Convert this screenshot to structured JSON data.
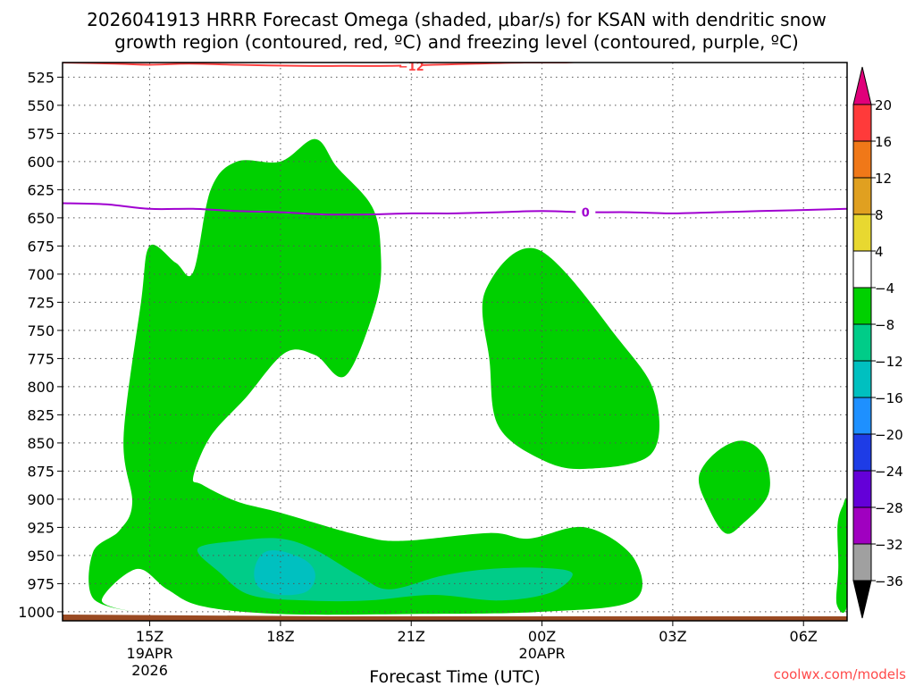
{
  "title": {
    "line1": "2026041913 HRRR Forecast Omega (shaded, μbar/s) for KSAN with dendritic snow",
    "line2": "growth region (contoured, red, ºC) and freezing level (contoured, purple, ºC)"
  },
  "credit": "coolwx.com/models",
  "chart_data": {
    "type": "contour",
    "xlabel": "Forecast Time (UTC)",
    "ylabel": "",
    "x_axis": {
      "unit": "hours since 2026-04-19 13Z",
      "range": [
        0,
        18
      ],
      "ticks": [
        {
          "value": 2,
          "label": "15Z",
          "sub1": "19APR",
          "sub2": "2026"
        },
        {
          "value": 5,
          "label": "18Z",
          "sub1": "",
          "sub2": ""
        },
        {
          "value": 8,
          "label": "21Z",
          "sub1": "",
          "sub2": ""
        },
        {
          "value": 11,
          "label": "00Z",
          "sub1": "20APR",
          "sub2": ""
        },
        {
          "value": 14,
          "label": "03Z",
          "sub1": "",
          "sub2": ""
        },
        {
          "value": 17,
          "label": "06Z",
          "sub1": "",
          "sub2": ""
        }
      ]
    },
    "y_axis": {
      "unit": "mb",
      "range": [
        1008,
        512
      ],
      "ticks": [
        525,
        550,
        575,
        600,
        625,
        650,
        675,
        700,
        725,
        750,
        775,
        800,
        825,
        850,
        875,
        900,
        925,
        950,
        975,
        1000
      ]
    },
    "grid": true,
    "colorbar": {
      "labels": [
        "20",
        "16",
        "12",
        "8",
        "4",
        "−4",
        "−8",
        "−12",
        "−16",
        "−20",
        "−24",
        "−28",
        "−32",
        "−36"
      ],
      "top_arrow_color": "#e0007a",
      "bottom_arrow_color": "#000000",
      "bins": [
        {
          "from": 16,
          "to": 20,
          "color": "#ff3a3a"
        },
        {
          "from": 12,
          "to": 16,
          "color": "#f07818"
        },
        {
          "from": 8,
          "to": 12,
          "color": "#e0a020"
        },
        {
          "from": 4,
          "to": 8,
          "color": "#e8d830"
        },
        {
          "from": -4,
          "to": 4,
          "color": "#ffffff"
        },
        {
          "from": -8,
          "to": -4,
          "color": "#00d000"
        },
        {
          "from": -12,
          "to": -8,
          "color": "#00cc88"
        },
        {
          "from": -16,
          "to": -12,
          "color": "#00c0c0"
        },
        {
          "from": -20,
          "to": -16,
          "color": "#1e90ff"
        },
        {
          "from": -24,
          "to": -20,
          "color": "#1e3ce6"
        },
        {
          "from": -28,
          "to": -24,
          "color": "#6400d8"
        },
        {
          "from": -32,
          "to": -28,
          "color": "#a000c0"
        },
        {
          "from": -36,
          "to": -32,
          "color": "#a0a0a0"
        }
      ]
    },
    "shaded_regions": [
      {
        "name": "omega-ascent-main",
        "level": -4,
        "color": "#00d000",
        "points": [
          [
            1.7,
            1000
          ],
          [
            0.7,
            988
          ],
          [
            0.7,
            947
          ],
          [
            1.3,
            928
          ],
          [
            1.6,
            903
          ],
          [
            1.4,
            845
          ],
          [
            1.8,
            725
          ],
          [
            2.0,
            675
          ],
          [
            2.6,
            690
          ],
          [
            3.0,
            698
          ],
          [
            3.4,
            625
          ],
          [
            4.0,
            600
          ],
          [
            5.0,
            600
          ],
          [
            5.8,
            580
          ],
          [
            6.3,
            605
          ],
          [
            7.1,
            640
          ],
          [
            7.3,
            680
          ],
          [
            7.2,
            725
          ],
          [
            6.5,
            790
          ],
          [
            5.8,
            772
          ],
          [
            5.1,
            770
          ],
          [
            4.2,
            810
          ],
          [
            3.4,
            844
          ],
          [
            3.0,
            880
          ],
          [
            3.2,
            887
          ],
          [
            4.0,
            902
          ],
          [
            5.0,
            912
          ],
          [
            6.8,
            932
          ],
          [
            7.8,
            937
          ],
          [
            9.8,
            930
          ],
          [
            10.7,
            935
          ],
          [
            12.0,
            925
          ],
          [
            13.1,
            952
          ],
          [
            13.1,
            990
          ],
          [
            11.0,
            1000
          ],
          [
            8.0,
            1002
          ],
          [
            5.0,
            1002
          ],
          [
            3.2,
            995
          ],
          [
            2.4,
            980
          ],
          [
            1.7,
            962
          ],
          [
            0.9,
            990
          ]
        ]
      },
      {
        "name": "omega-ascent-evening",
        "level": -4,
        "color": "#00d000",
        "points": [
          [
            10.9,
            678
          ],
          [
            12.8,
            760
          ],
          [
            13.6,
            808
          ],
          [
            13.5,
            860
          ],
          [
            12.0,
            873
          ],
          [
            11.0,
            865
          ],
          [
            10.0,
            835
          ],
          [
            9.8,
            778
          ],
          [
            9.7,
            715
          ]
        ]
      },
      {
        "name": "omega-ascent-late",
        "level": -4,
        "color": "#00d000",
        "points": [
          [
            15.0,
            858
          ],
          [
            15.6,
            848
          ],
          [
            16.1,
            862
          ],
          [
            16.2,
            895
          ],
          [
            15.6,
            922
          ],
          [
            15.2,
            930
          ],
          [
            14.8,
            906
          ],
          [
            14.6,
            880
          ]
        ]
      },
      {
        "name": "omega-ascent-edge",
        "level": -4,
        "color": "#00d000",
        "points": [
          [
            17.78,
            923
          ],
          [
            17.9,
            906
          ],
          [
            18.0,
            906
          ],
          [
            18.0,
            993
          ],
          [
            17.76,
            993
          ],
          [
            17.8,
            960
          ]
        ]
      },
      {
        "name": "omega-ascent-minus8",
        "level": -8,
        "color": "#00cc88",
        "points": [
          [
            3.1,
            944
          ],
          [
            4.0,
            937
          ],
          [
            5.0,
            935
          ],
          [
            5.8,
            945
          ],
          [
            6.8,
            968
          ],
          [
            7.5,
            980
          ],
          [
            8.7,
            968
          ],
          [
            9.8,
            962
          ],
          [
            11.0,
            961
          ],
          [
            11.7,
            966
          ],
          [
            11.2,
            983
          ],
          [
            10.0,
            990
          ],
          [
            8.5,
            985
          ],
          [
            7.0,
            990
          ],
          [
            5.6,
            990
          ],
          [
            4.3,
            985
          ],
          [
            3.6,
            965
          ]
        ]
      },
      {
        "name": "omega-ascent-minus12",
        "level": -12,
        "color": "#00c0c0",
        "points": [
          [
            4.6,
            948
          ],
          [
            5.0,
            946
          ],
          [
            5.6,
            955
          ],
          [
            5.8,
            968
          ],
          [
            5.6,
            982
          ],
          [
            5.0,
            985
          ],
          [
            4.5,
            978
          ],
          [
            4.4,
            963
          ]
        ]
      }
    ],
    "contours": [
      {
        "name": "dendritic-growth-minus12",
        "label": "−12",
        "color": "#ff4040",
        "label_at": [
          8.0,
          515
        ],
        "points": [
          [
            0,
            512
          ],
          [
            1.2,
            513
          ],
          [
            2.0,
            514
          ],
          [
            2.9,
            513
          ],
          [
            4.0,
            514
          ],
          [
            5.5,
            515
          ],
          [
            6.5,
            515
          ],
          [
            7.5,
            515
          ],
          [
            8.5,
            514
          ],
          [
            9.5,
            513
          ],
          [
            10.6,
            512
          ],
          [
            11.5,
            512
          ],
          [
            12.0,
            511
          ]
        ]
      },
      {
        "name": "freezing-level-0",
        "label": "0",
        "color": "#a000d0",
        "label_at": [
          12.0,
          645
        ],
        "points": [
          [
            0,
            637
          ],
          [
            1.0,
            638
          ],
          [
            2.0,
            642
          ],
          [
            3.0,
            642
          ],
          [
            4.0,
            644
          ],
          [
            5.0,
            645
          ],
          [
            6.0,
            647
          ],
          [
            7.0,
            647
          ],
          [
            8.0,
            646
          ],
          [
            9.0,
            646
          ],
          [
            10.0,
            645
          ],
          [
            11.0,
            644
          ],
          [
            12.0,
            645
          ],
          [
            13.0,
            645
          ],
          [
            14.0,
            646
          ],
          [
            15.0,
            645
          ],
          [
            16.0,
            644
          ],
          [
            17.0,
            643
          ],
          [
            18.0,
            642
          ]
        ]
      }
    ],
    "ground": {
      "color": "#9a4a22",
      "top_mb": 1004
    }
  }
}
